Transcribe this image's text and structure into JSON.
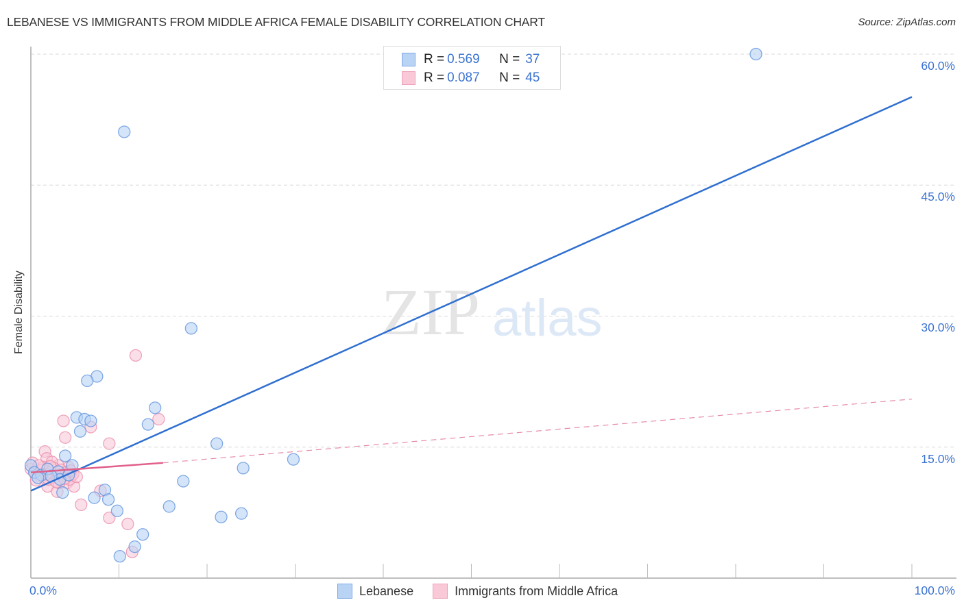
{
  "header": {
    "title": "LEBANESE VS IMMIGRANTS FROM MIDDLE AFRICA FEMALE DISABILITY CORRELATION CHART",
    "source": "Source: ZipAtlas.com"
  },
  "watermark": {
    "zip": "ZIP",
    "atlas": "atlas"
  },
  "legend_top": {
    "rows": [
      {
        "r_label": "R = ",
        "r_value": "0.569",
        "n_label": "N = ",
        "n_value": "37",
        "color": "#b9d3f5"
      },
      {
        "r_label": "R = ",
        "r_value": "0.087",
        "n_label": "N = ",
        "n_value": "45",
        "color": "#f9c9d8"
      }
    ]
  },
  "legend_bottom": {
    "items": [
      {
        "label": "Lebanese",
        "color": "#b9d3f5"
      },
      {
        "label": "Immigrants from Middle Africa",
        "color": "#f9c9d8"
      }
    ]
  },
  "axes": {
    "ylabel": "Female Disability",
    "y_ticks": [
      "60.0%",
      "45.0%",
      "30.0%",
      "15.0%"
    ],
    "x_ticks": [
      "0.0%",
      "100.0%"
    ]
  },
  "chart_data": {
    "type": "scatter",
    "title": "LEBANESE VS IMMIGRANTS FROM MIDDLE AFRICA FEMALE DISABILITY CORRELATION CHART",
    "xlabel": "",
    "ylabel": "Female Disability",
    "xlim": [
      0,
      100
    ],
    "ylim": [
      0,
      62
    ],
    "y_ticks": [
      15,
      30,
      45,
      60
    ],
    "x_tick_labels": [
      "0.0%",
      "100.0%"
    ],
    "grid": true,
    "legend_position": "top-center and bottom",
    "series": [
      {
        "name": "Lebanese",
        "color": "#3b73d1",
        "fill": "#b9d3f5",
        "R": 0.569,
        "N": 37,
        "trend": {
          "x": [
            0,
            100
          ],
          "y": [
            10.0,
            55.1
          ],
          "style": "solid"
        },
        "points": [
          [
            82.3,
            60.0
          ],
          [
            10.6,
            51.1
          ],
          [
            18.2,
            28.6
          ],
          [
            7.5,
            23.1
          ],
          [
            6.4,
            22.6
          ],
          [
            14.1,
            19.5
          ],
          [
            5.2,
            18.4
          ],
          [
            6.1,
            18.2
          ],
          [
            6.8,
            18.0
          ],
          [
            5.6,
            16.8
          ],
          [
            13.3,
            17.6
          ],
          [
            21.1,
            15.4
          ],
          [
            29.8,
            13.6
          ],
          [
            24.1,
            12.6
          ],
          [
            3.9,
            14.0
          ],
          [
            4.7,
            12.9
          ],
          [
            17.3,
            11.1
          ],
          [
            8.4,
            10.1
          ],
          [
            7.2,
            9.2
          ],
          [
            8.8,
            9.0
          ],
          [
            15.7,
            8.2
          ],
          [
            9.8,
            7.7
          ],
          [
            21.6,
            7.0
          ],
          [
            23.9,
            7.4
          ],
          [
            12.7,
            5.0
          ],
          [
            11.8,
            3.6
          ],
          [
            10.1,
            2.5
          ],
          [
            0.0,
            12.9
          ],
          [
            0.4,
            12.1
          ],
          [
            1.2,
            11.8
          ],
          [
            1.9,
            12.5
          ],
          [
            3.1,
            12.2
          ],
          [
            3.3,
            11.3
          ],
          [
            2.3,
            11.7
          ],
          [
            0.8,
            11.5
          ],
          [
            4.3,
            11.8
          ],
          [
            3.6,
            9.8
          ]
        ]
      },
      {
        "name": "Immigrants from Middle Africa",
        "color": "#e0608a",
        "fill": "#f9c9d8",
        "R": 0.087,
        "N": 45,
        "trend": {
          "x": [
            0,
            15,
            100
          ],
          "y": [
            12.1,
            13.2,
            20.5
          ],
          "style": "solid to 15%, dashed beyond"
        },
        "points": [
          [
            11.9,
            25.5
          ],
          [
            3.7,
            18.0
          ],
          [
            14.5,
            18.2
          ],
          [
            6.8,
            17.3
          ],
          [
            3.9,
            16.1
          ],
          [
            8.9,
            15.4
          ],
          [
            1.6,
            14.5
          ],
          [
            1.8,
            13.7
          ],
          [
            0.0,
            12.5
          ],
          [
            0.5,
            12.1
          ],
          [
            1.0,
            11.7
          ],
          [
            1.4,
            12.7
          ],
          [
            2.1,
            12.1
          ],
          [
            2.7,
            11.5
          ],
          [
            3.1,
            12.9
          ],
          [
            3.5,
            11.8
          ],
          [
            2.4,
            13.3
          ],
          [
            4.3,
            12.7
          ],
          [
            4.6,
            11.7
          ],
          [
            4.1,
            10.9
          ],
          [
            1.9,
            10.5
          ],
          [
            3.0,
            9.9
          ],
          [
            4.9,
            10.5
          ],
          [
            4.4,
            11.3
          ],
          [
            0.2,
            13.2
          ],
          [
            3.2,
            10.9
          ],
          [
            5.7,
            8.4
          ],
          [
            7.9,
            10.0
          ],
          [
            8.9,
            6.9
          ],
          [
            11.0,
            6.2
          ],
          [
            11.5,
            3.0
          ],
          [
            0.6,
            11.2
          ],
          [
            1.3,
            12.4
          ],
          [
            2.0,
            11.3
          ],
          [
            2.6,
            12.6
          ],
          [
            3.4,
            12.4
          ],
          [
            4.0,
            12.1
          ],
          [
            4.8,
            11.9
          ],
          [
            5.2,
            11.6
          ],
          [
            1.7,
            11.9
          ],
          [
            2.9,
            11.0
          ],
          [
            0.9,
            12.9
          ],
          [
            3.8,
            11.4
          ],
          [
            2.2,
            12.8
          ],
          [
            4.5,
            12.3
          ]
        ]
      }
    ]
  }
}
